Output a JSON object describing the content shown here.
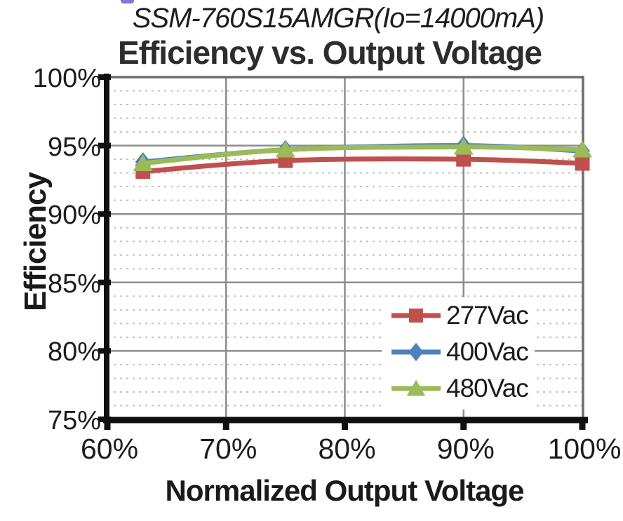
{
  "header": {
    "subtitle": "SSM-760S15AMGR(Io=14000mA)",
    "title": "Efficiency vs. Output Voltage"
  },
  "artifact": {
    "description": "cropped-blue-link-fragment",
    "color": "#8377d1"
  },
  "axes": {
    "y_title": "Efficiency",
    "x_title": "Normalized Output Voltage"
  },
  "chart_data": {
    "type": "line",
    "title": "Efficiency vs. Output Voltage",
    "subtitle": "SSM-760S15AMGR(Io=14000mA)",
    "xlabel": "Normalized Output Voltage",
    "ylabel": "Efficiency",
    "xlim": [
      60,
      100
    ],
    "ylim": [
      75,
      100
    ],
    "x_ticks": [
      "60%",
      "70%",
      "80%",
      "90%",
      "100%"
    ],
    "x_tick_values": [
      60,
      70,
      80,
      90,
      100
    ],
    "y_ticks": [
      "100%",
      "95%",
      "90%",
      "85%",
      "80%",
      "75%"
    ],
    "y_tick_values": [
      100,
      95,
      90,
      85,
      80,
      75
    ],
    "grid": {
      "major_horizontal_step": 5,
      "minor_horizontal_step": 1,
      "vertical_lines": [
        70,
        80,
        90
      ],
      "minor_style": "dashed"
    },
    "x": [
      63,
      75,
      90,
      100
    ],
    "series": [
      {
        "name": "277Vac",
        "color": "#c0504d",
        "marker": "square",
        "values": [
          93.1,
          93.9,
          94.0,
          93.7
        ]
      },
      {
        "name": "400Vac",
        "color": "#4f81bd",
        "marker": "diamond",
        "values": [
          93.8,
          94.7,
          95.0,
          94.6
        ]
      },
      {
        "name": "480Vac",
        "color": "#9bbb59",
        "marker": "triangle",
        "values": [
          93.7,
          94.7,
          94.9,
          94.7
        ]
      }
    ],
    "legend_position": "inside lower-right",
    "legend_entries": [
      "277Vac",
      "400Vac",
      "480Vac"
    ],
    "colors": {
      "spine_major": "#101010",
      "spine_minor": "#6e6e6e",
      "grid_major": "#8d8d8d",
      "grid_minor": "#c2c2c2"
    }
  }
}
